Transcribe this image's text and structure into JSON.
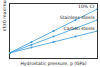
{
  "chart_data": {
    "type": "line",
    "x_label": "Hydrostatic pressure, p (GPa)",
    "y_label": "εf/ε0 maximum",
    "x": [
      0,
      0.25,
      0.5,
      0.75,
      1
    ],
    "series": [
      {
        "name": "10% Cr",
        "color": "#3a9ad9",
        "marker": "circle",
        "values": [
          1,
          3,
          5,
          7,
          9
        ]
      },
      {
        "name": "Stainless steels",
        "color": "#3a9ad9",
        "marker": "circle",
        "values": [
          1,
          2.5,
          4,
          5.5,
          7
        ]
      },
      {
        "name": "Carbon steels",
        "color": "#3a9ad9",
        "marker": "circle",
        "values": [
          1,
          2,
          3,
          4,
          5
        ]
      }
    ],
    "xlim": [
      0,
      1
    ],
    "ylim": [
      0,
      10
    ],
    "tick_labels": false,
    "grid": false
  }
}
